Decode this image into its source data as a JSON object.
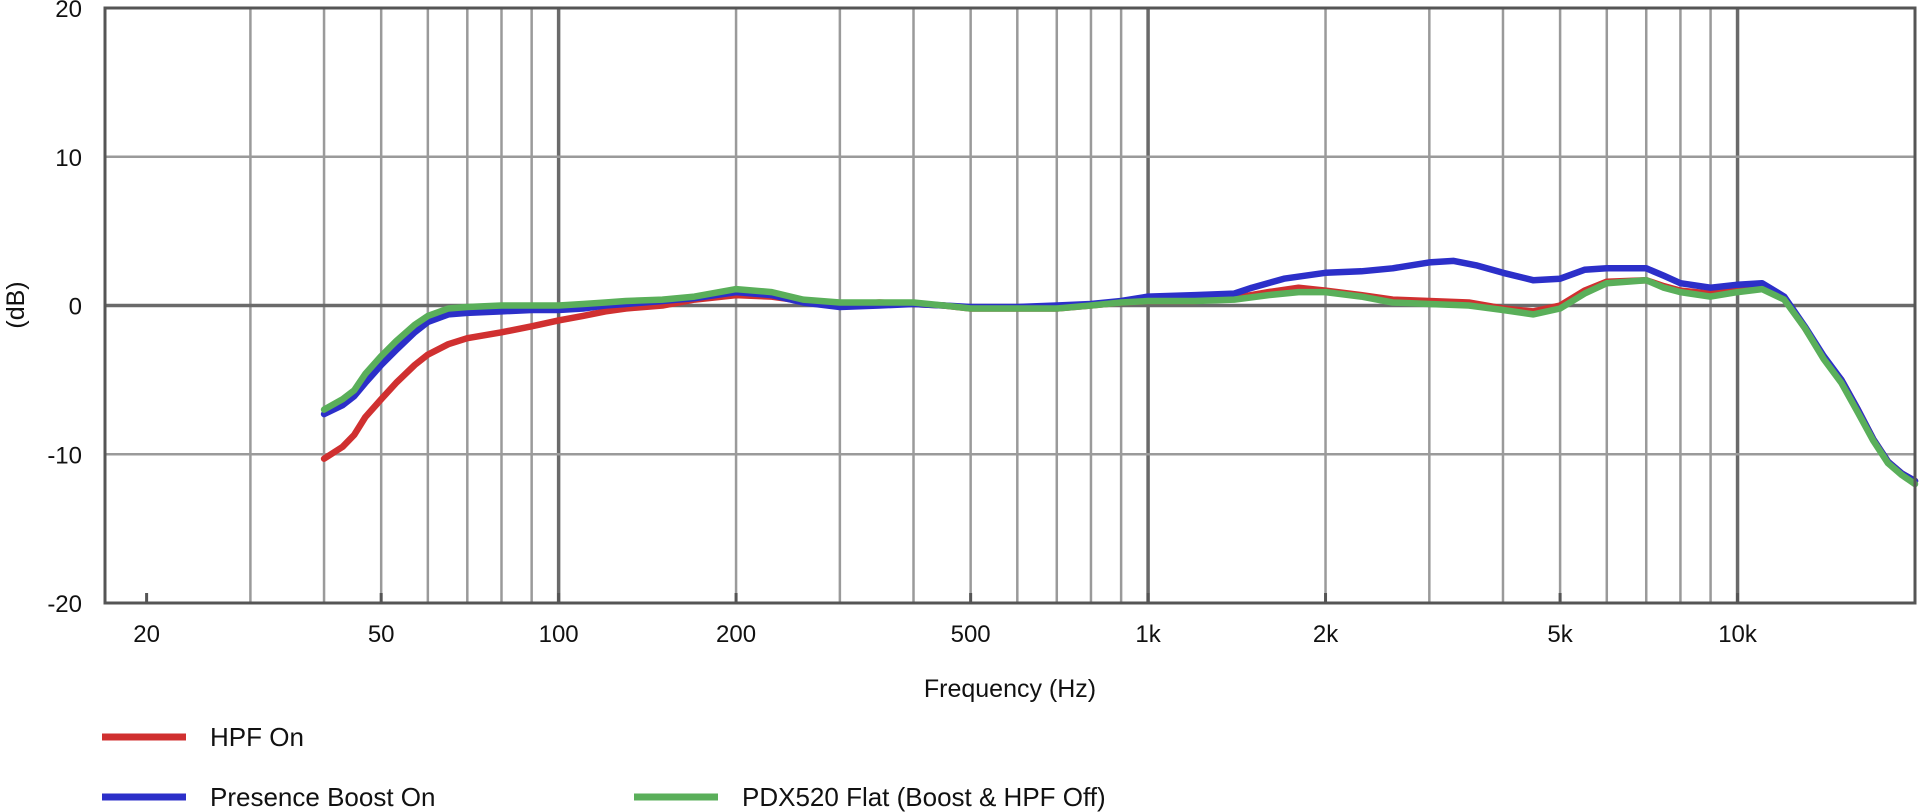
{
  "chart_data": {
    "type": "line",
    "xscale": "log",
    "xlim": [
      17,
      20000
    ],
    "ylim": [
      -20,
      20
    ],
    "grid": true,
    "xlabel": "Frequency (Hz)",
    "ylabel": "(dB)",
    "yticks": [
      {
        "value": 20,
        "label": "20"
      },
      {
        "value": 10,
        "label": "10"
      },
      {
        "value": 0,
        "label": "0"
      },
      {
        "value": -10,
        "label": "-10"
      },
      {
        "value": -20,
        "label": "-20"
      }
    ],
    "xticks": [
      {
        "value": 20,
        "label": "20"
      },
      {
        "value": 50,
        "label": "50"
      },
      {
        "value": 100,
        "label": "100"
      },
      {
        "value": 200,
        "label": "200"
      },
      {
        "value": 500,
        "label": "500"
      },
      {
        "value": 1000,
        "label": "1k"
      },
      {
        "value": 2000,
        "label": "2k"
      },
      {
        "value": 5000,
        "label": "5k"
      },
      {
        "value": 10000,
        "label": "10k"
      }
    ],
    "major_gridlines_x": [
      100,
      1000,
      10000
    ],
    "minor_gridlines_x": [
      30,
      40,
      50,
      60,
      70,
      80,
      90,
      200,
      300,
      400,
      500,
      600,
      700,
      800,
      900,
      2000,
      3000,
      4000,
      5000,
      6000,
      7000,
      8000,
      9000
    ],
    "minor_gridlines_y": [
      10,
      -10
    ],
    "major_gridlines_y": [
      0
    ],
    "legend_placement": "bottom",
    "series": [
      {
        "name": "HPF On",
        "color": "#d03030",
        "points": [
          [
            40,
            -10.3
          ],
          [
            43,
            -9.5
          ],
          [
            45,
            -8.7
          ],
          [
            47,
            -7.5
          ],
          [
            50,
            -6.3
          ],
          [
            53,
            -5.2
          ],
          [
            57,
            -4.0
          ],
          [
            60,
            -3.3
          ],
          [
            65,
            -2.6
          ],
          [
            70,
            -2.2
          ],
          [
            80,
            -1.8
          ],
          [
            90,
            -1.4
          ],
          [
            100,
            -1.0
          ],
          [
            110,
            -0.7
          ],
          [
            120,
            -0.4
          ],
          [
            130,
            -0.2
          ],
          [
            150,
            0.0
          ],
          [
            170,
            0.4
          ],
          [
            200,
            0.7
          ],
          [
            230,
            0.6
          ],
          [
            260,
            0.3
          ],
          [
            300,
            0.0
          ],
          [
            350,
            0.2
          ],
          [
            400,
            0.1
          ],
          [
            450,
            0.0
          ],
          [
            500,
            -0.2
          ],
          [
            600,
            -0.2
          ],
          [
            700,
            -0.2
          ],
          [
            800,
            0.0
          ],
          [
            900,
            0.2
          ],
          [
            1000,
            0.3
          ],
          [
            1200,
            0.3
          ],
          [
            1400,
            0.5
          ],
          [
            1600,
            0.9
          ],
          [
            1800,
            1.2
          ],
          [
            2000,
            1.0
          ],
          [
            2300,
            0.7
          ],
          [
            2600,
            0.4
          ],
          [
            3000,
            0.3
          ],
          [
            3500,
            0.2
          ],
          [
            4000,
            -0.2
          ],
          [
            4500,
            -0.4
          ],
          [
            5000,
            0.0
          ],
          [
            5500,
            1.0
          ],
          [
            6000,
            1.6
          ],
          [
            7000,
            1.7
          ],
          [
            7500,
            1.3
          ],
          [
            8000,
            1.0
          ],
          [
            9000,
            0.8
          ],
          [
            10000,
            1.0
          ],
          [
            11000,
            1.2
          ],
          [
            12000,
            0.5
          ],
          [
            13000,
            -1.5
          ],
          [
            14000,
            -3.5
          ],
          [
            15000,
            -5.0
          ],
          [
            16000,
            -7.0
          ],
          [
            17000,
            -9.0
          ],
          [
            18000,
            -10.5
          ],
          [
            19000,
            -11.3
          ],
          [
            20000,
            -11.8
          ]
        ]
      },
      {
        "name": "Presence Boost On",
        "color": "#2c2fc9",
        "points": [
          [
            40,
            -7.3
          ],
          [
            43,
            -6.7
          ],
          [
            45,
            -6.1
          ],
          [
            47,
            -5.2
          ],
          [
            50,
            -4.0
          ],
          [
            53,
            -3.0
          ],
          [
            57,
            -1.8
          ],
          [
            60,
            -1.1
          ],
          [
            65,
            -0.6
          ],
          [
            70,
            -0.5
          ],
          [
            80,
            -0.4
          ],
          [
            90,
            -0.3
          ],
          [
            100,
            -0.3
          ],
          [
            110,
            -0.2
          ],
          [
            120,
            0.0
          ],
          [
            130,
            0.1
          ],
          [
            150,
            0.3
          ],
          [
            170,
            0.5
          ],
          [
            200,
            0.9
          ],
          [
            230,
            0.7
          ],
          [
            260,
            0.2
          ],
          [
            300,
            -0.1
          ],
          [
            350,
            0.0
          ],
          [
            400,
            0.1
          ],
          [
            450,
            0.0
          ],
          [
            500,
            -0.1
          ],
          [
            600,
            -0.1
          ],
          [
            700,
            0.0
          ],
          [
            800,
            0.1
          ],
          [
            900,
            0.3
          ],
          [
            1000,
            0.6
          ],
          [
            1200,
            0.7
          ],
          [
            1400,
            0.8
          ],
          [
            1500,
            1.2
          ],
          [
            1700,
            1.8
          ],
          [
            2000,
            2.2
          ],
          [
            2300,
            2.3
          ],
          [
            2600,
            2.5
          ],
          [
            3000,
            2.9
          ],
          [
            3300,
            3.0
          ],
          [
            3600,
            2.7
          ],
          [
            4000,
            2.2
          ],
          [
            4500,
            1.7
          ],
          [
            5000,
            1.8
          ],
          [
            5500,
            2.4
          ],
          [
            6000,
            2.5
          ],
          [
            7000,
            2.5
          ],
          [
            7500,
            2.0
          ],
          [
            8000,
            1.5
          ],
          [
            9000,
            1.2
          ],
          [
            10000,
            1.4
          ],
          [
            11000,
            1.5
          ],
          [
            12000,
            0.6
          ],
          [
            13000,
            -1.4
          ],
          [
            14000,
            -3.4
          ],
          [
            15000,
            -5.0
          ],
          [
            16000,
            -7.0
          ],
          [
            17000,
            -9.0
          ],
          [
            18000,
            -10.5
          ],
          [
            19000,
            -11.3
          ],
          [
            20000,
            -11.8
          ]
        ]
      },
      {
        "name": "PDX520 Flat (Boost & HPF Off)",
        "color": "#5aaf5a",
        "points": [
          [
            40,
            -7.0
          ],
          [
            43,
            -6.3
          ],
          [
            45,
            -5.7
          ],
          [
            47,
            -4.6
          ],
          [
            50,
            -3.4
          ],
          [
            53,
            -2.4
          ],
          [
            57,
            -1.3
          ],
          [
            60,
            -0.7
          ],
          [
            65,
            -0.2
          ],
          [
            70,
            -0.1
          ],
          [
            80,
            0.0
          ],
          [
            90,
            0.0
          ],
          [
            100,
            0.0
          ],
          [
            110,
            0.1
          ],
          [
            120,
            0.2
          ],
          [
            130,
            0.3
          ],
          [
            150,
            0.4
          ],
          [
            170,
            0.6
          ],
          [
            200,
            1.1
          ],
          [
            230,
            0.9
          ],
          [
            260,
            0.4
          ],
          [
            300,
            0.2
          ],
          [
            350,
            0.2
          ],
          [
            400,
            0.2
          ],
          [
            450,
            0.0
          ],
          [
            500,
            -0.2
          ],
          [
            600,
            -0.2
          ],
          [
            700,
            -0.2
          ],
          [
            800,
            0.0
          ],
          [
            900,
            0.2
          ],
          [
            1000,
            0.3
          ],
          [
            1200,
            0.3
          ],
          [
            1400,
            0.4
          ],
          [
            1600,
            0.7
          ],
          [
            1800,
            0.9
          ],
          [
            2000,
            0.9
          ],
          [
            2300,
            0.6
          ],
          [
            2600,
            0.2
          ],
          [
            3000,
            0.1
          ],
          [
            3500,
            0.0
          ],
          [
            4000,
            -0.3
          ],
          [
            4500,
            -0.6
          ],
          [
            5000,
            -0.2
          ],
          [
            5500,
            0.8
          ],
          [
            6000,
            1.5
          ],
          [
            7000,
            1.7
          ],
          [
            7500,
            1.2
          ],
          [
            8000,
            0.9
          ],
          [
            9000,
            0.6
          ],
          [
            10000,
            0.9
          ],
          [
            11000,
            1.1
          ],
          [
            12000,
            0.4
          ],
          [
            13000,
            -1.5
          ],
          [
            14000,
            -3.6
          ],
          [
            15000,
            -5.2
          ],
          [
            16000,
            -7.2
          ],
          [
            17000,
            -9.1
          ],
          [
            18000,
            -10.6
          ],
          [
            19000,
            -11.4
          ],
          [
            20000,
            -12.0
          ]
        ]
      }
    ]
  }
}
